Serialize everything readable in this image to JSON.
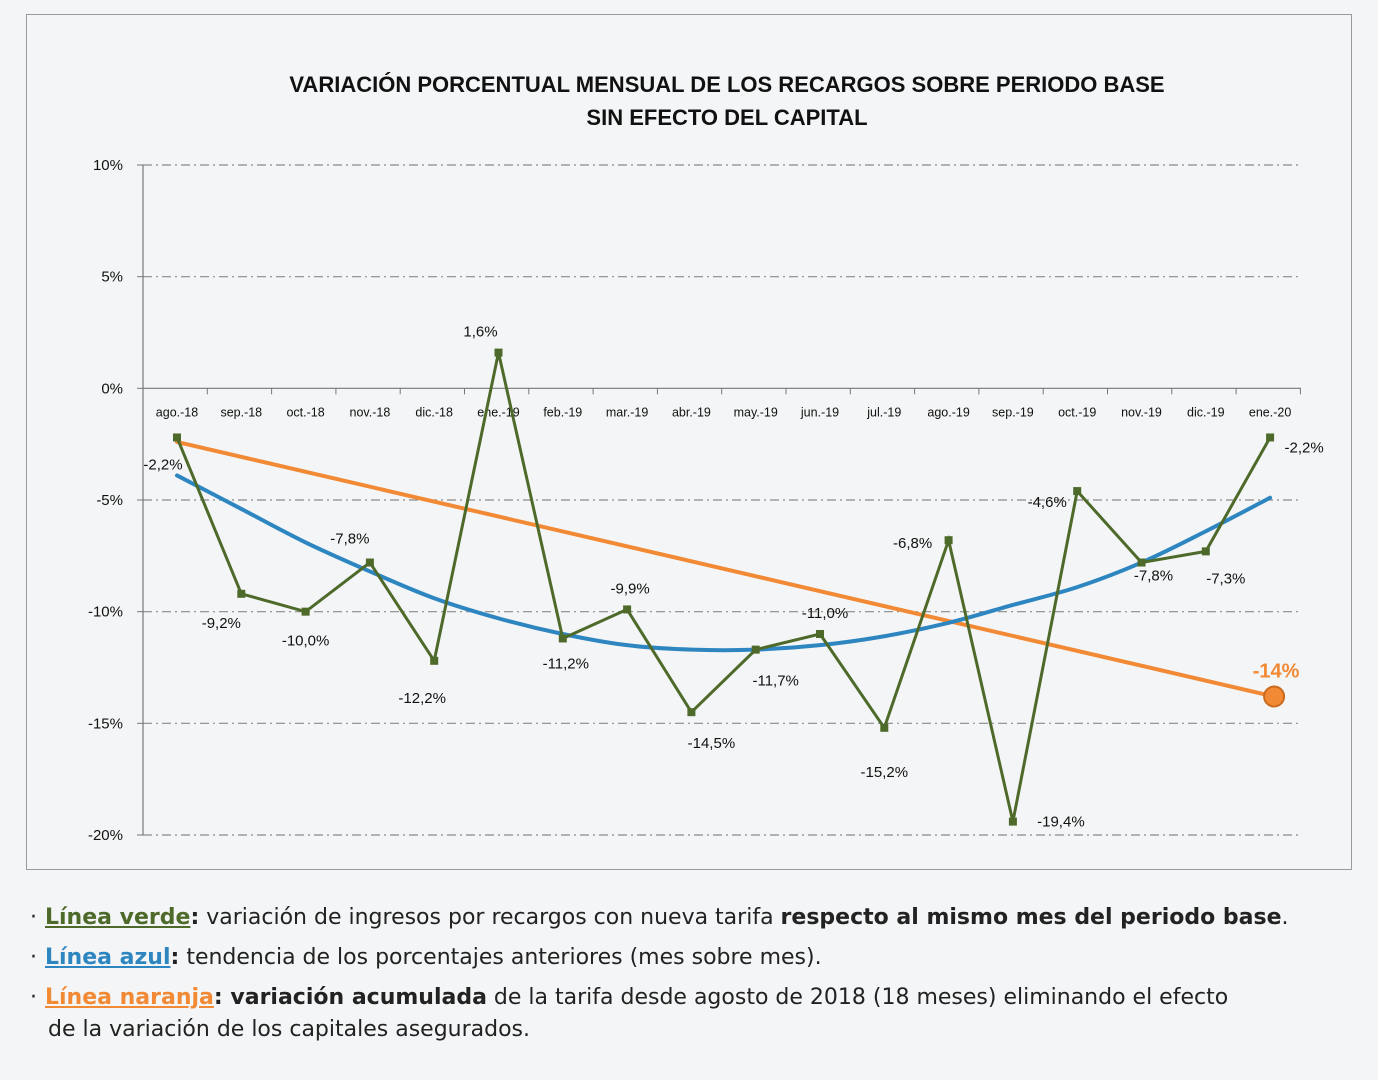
{
  "chart_data": {
    "type": "line",
    "title": [
      "VARIACIÓN  PORCENTUAL  MENSUAL DE LOS  RECARGOS SOBRE PERIODO BASE",
      "SIN EFECTO DEL CAPITAL"
    ],
    "xlabel": "",
    "ylabel": "",
    "categories": [
      "ago.-18",
      "sep.-18",
      "oct.-18",
      "nov.-18",
      "dic.-18",
      "ene.-19",
      "feb.-19",
      "mar.-19",
      "abr.-19",
      "may.-19",
      "jun.-19",
      "jul.-19",
      "ago.-19",
      "sep.-19",
      "oct.-19",
      "nov.-19",
      "dic.-19",
      "ene.-20"
    ],
    "ylim": [
      -20,
      10
    ],
    "yticks": [
      10,
      5,
      0,
      -5,
      -10,
      -15,
      -20
    ],
    "ytick_labels": [
      "10%",
      "5%",
      "0%",
      "-5%",
      "-10%",
      "-15%",
      "-20%"
    ],
    "grid": true,
    "series": [
      {
        "key": "green",
        "color": "#4e6a2a",
        "values": [
          -2.2,
          -9.2,
          -10.0,
          -7.8,
          -12.2,
          1.6,
          -11.2,
          -9.9,
          -14.5,
          -11.7,
          -11.0,
          -15.2,
          -6.8,
          -19.4,
          -4.6,
          -7.8,
          -7.3,
          -2.2
        ],
        "data_labels": [
          "-2,2%",
          "-9,2%",
          "-10,0%",
          "-7,8%",
          "-12,2%",
          "1,6%",
          "-11,2%",
          "-9,9%",
          "-14,5%",
          "-11,7%",
          "-11,0%",
          "-15,2%",
          "-6,8%",
          "-19,4%",
          "-4,6%",
          "-7,8%",
          "-7,3%",
          "-2,2%"
        ]
      },
      {
        "key": "blue",
        "color": "#2e86c1",
        "values": [
          -3.9,
          -5.4,
          -6.9,
          -8.2,
          -9.4,
          -10.3,
          -11.0,
          -11.5,
          -11.7,
          -11.7,
          -11.5,
          -11.1,
          -10.5,
          -9.7,
          -8.9,
          -7.8,
          -6.4,
          -4.9
        ]
      },
      {
        "key": "orange",
        "color": "#f28a35",
        "start": {
          "x": "ago.-18",
          "y": -2.4
        },
        "end": {
          "x": "ene.-20",
          "y": -13.8
        },
        "final_label": "-14%"
      }
    ]
  },
  "notes": {
    "green": {
      "key": "Línea verde",
      "colon": ":",
      "text1": " variación de ingresos por recargos con nueva tarifa ",
      "strong": "respecto al mismo mes del periodo base",
      "text2": "."
    },
    "blue": {
      "key": "Línea azul",
      "colon": ":",
      "text1": " tendencia de los porcentajes anteriores (mes sobre mes)."
    },
    "orange": {
      "key": "Línea naranja",
      "colon": ":",
      "strong": " variación acumulada",
      "text1": " de la tarifa desde agosto de 2018 (18 meses) eliminando el efecto",
      "text2": "de la variación de los capitales asegurados."
    },
    "bullet": "·"
  },
  "colors": {
    "green": "#4e6a2a",
    "blue": "#2e86c1",
    "orange": "#f28a35",
    "grid": "#8a8a8a"
  }
}
